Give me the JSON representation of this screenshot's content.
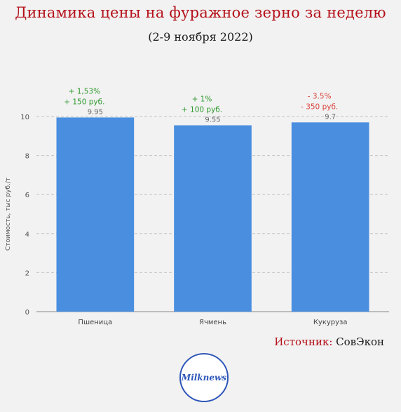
{
  "header": {
    "title": "Динамика цены на фуражное зерно за неделю",
    "subtitle": "(2-9 ноября 2022)"
  },
  "source": {
    "label": "Источник:",
    "value": "СовЭкон"
  },
  "logo": {
    "text": "Milknews"
  },
  "colors": {
    "bar": "#4a8ee0",
    "positive": "#2e9a2e",
    "negative": "#d9443b",
    "title": "#b5121b"
  },
  "chart_data": {
    "type": "bar",
    "categories": [
      "Пшеница",
      "Ячмень",
      "Кукуруза"
    ],
    "values": [
      9.95,
      9.55,
      9.7
    ],
    "data_labels": [
      "9.95",
      "9.55",
      "9.7"
    ],
    "annotations": [
      {
        "lines": [
          "+ 1,53%",
          "+ 150 руб."
        ],
        "tone": "positive"
      },
      {
        "lines": [
          "+ 1%",
          "+ 100 руб."
        ],
        "tone": "positive"
      },
      {
        "lines": [
          "- 3.5%",
          "- 350 руб."
        ],
        "tone": "negative"
      }
    ],
    "ylabel": "Стоимость, тыс руб./т",
    "ylim": [
      0,
      10
    ],
    "yticks": [
      0,
      2,
      4,
      6,
      8,
      10
    ],
    "grid": true
  }
}
